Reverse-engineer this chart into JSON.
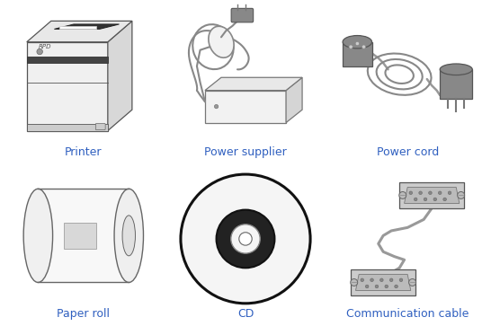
{
  "labels": [
    "Printer",
    "Power supplier",
    "Power cord",
    "Paper roll",
    "CD",
    "Communication cable"
  ],
  "label_color": "#3060C0",
  "label_fontsize": 9,
  "grid_color": "#aaaaaa",
  "bg_color": "#ffffff",
  "fig_width": 5.46,
  "fig_height": 3.63
}
